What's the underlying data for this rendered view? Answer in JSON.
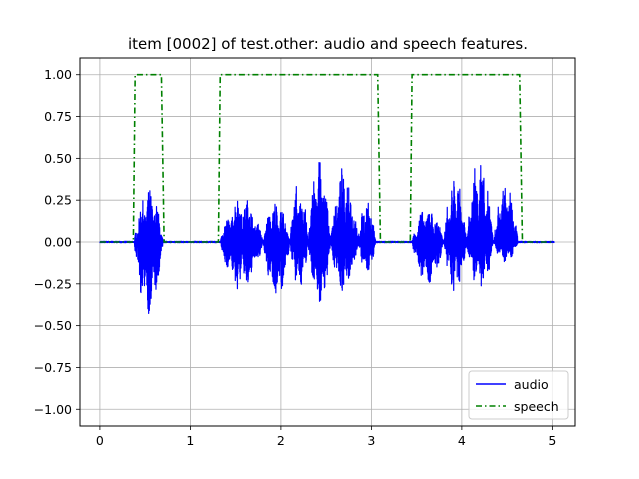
{
  "chart_data": {
    "type": "line",
    "title": "item [0002] of test.other: audio and speech features.",
    "xlabel": "",
    "ylabel": "",
    "xlim": [
      -0.22,
      5.25
    ],
    "ylim": [
      -1.1,
      1.1
    ],
    "xticks": [
      0,
      1,
      2,
      3,
      4,
      5
    ],
    "xtick_labels": [
      "0",
      "1",
      "2",
      "3",
      "4",
      "5"
    ],
    "yticks": [
      -1.0,
      -0.75,
      -0.5,
      -0.25,
      0.0,
      0.25,
      0.5,
      0.75,
      1.0
    ],
    "ytick_labels": [
      "−1.00",
      "−0.75",
      "−0.50",
      "−0.25",
      "0.00",
      "0.25",
      "0.50",
      "0.75",
      "1.00"
    ],
    "grid": true,
    "legend": "lower-right",
    "series": [
      {
        "name": "audio",
        "color": "#0000ff",
        "style": "solid",
        "duration": 5.02,
        "bursts": [
          {
            "start": 0.38,
            "end": 0.7,
            "pos": 0.32,
            "neg": -0.45
          },
          {
            "start": 1.33,
            "end": 1.8,
            "pos": 0.28,
            "neg": -0.3
          },
          {
            "start": 1.8,
            "end": 2.1,
            "pos": 0.25,
            "neg": -0.35
          },
          {
            "start": 2.1,
            "end": 2.3,
            "pos": 0.38,
            "neg": -0.3
          },
          {
            "start": 2.3,
            "end": 2.55,
            "pos": 0.53,
            "neg": -0.42
          },
          {
            "start": 2.55,
            "end": 2.85,
            "pos": 0.46,
            "neg": -0.32
          },
          {
            "start": 2.85,
            "end": 3.05,
            "pos": 0.25,
            "neg": -0.2
          },
          {
            "start": 3.45,
            "end": 3.8,
            "pos": 0.22,
            "neg": -0.26
          },
          {
            "start": 3.8,
            "end": 4.05,
            "pos": 0.4,
            "neg": -0.32
          },
          {
            "start": 4.05,
            "end": 4.35,
            "pos": 0.52,
            "neg": -0.3
          },
          {
            "start": 4.35,
            "end": 4.62,
            "pos": 0.36,
            "neg": -0.12
          }
        ]
      },
      {
        "name": "speech",
        "color": "#008000",
        "style": "dashdot",
        "x": [
          0.0,
          0.37,
          0.39,
          0.68,
          0.71,
          1.31,
          1.33,
          3.07,
          3.1,
          3.43,
          3.45,
          4.64,
          4.67,
          5.02
        ],
        "y": [
          0,
          0,
          1,
          1,
          0,
          0,
          1,
          1,
          0,
          0,
          1,
          1,
          0,
          0
        ]
      }
    ]
  }
}
